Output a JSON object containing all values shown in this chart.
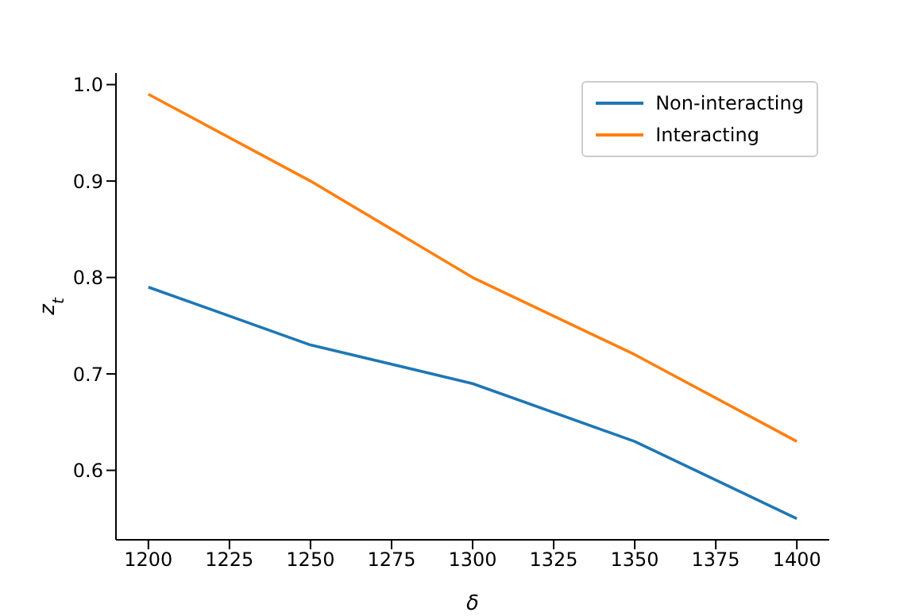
{
  "chart_data": {
    "type": "line",
    "xlabel": "δ",
    "ylabel": "z$_{t}$",
    "x": [
      1200,
      1250,
      1300,
      1350,
      1400
    ],
    "series": [
      {
        "name": "Non-interacting",
        "color": "#1f77b4",
        "values": [
          0.79,
          0.73,
          0.69,
          0.63,
          0.55
        ]
      },
      {
        "name": "Interacting",
        "color": "#ff7f0e",
        "values": [
          0.99,
          0.9,
          0.8,
          0.72,
          0.63
        ]
      }
    ],
    "xlim": [
      1190,
      1410
    ],
    "xticks": [
      1200,
      1225,
      1250,
      1275,
      1300,
      1325,
      1350,
      1375,
      1400
    ],
    "ylim": [
      0.528,
      1.012
    ],
    "yticks": [
      0.6,
      0.7,
      0.8,
      0.9,
      {
        "value": 1,
        "label": "1.0"
      }
    ],
    "grid": false,
    "legend": "top right",
    "line_style": "solid"
  }
}
